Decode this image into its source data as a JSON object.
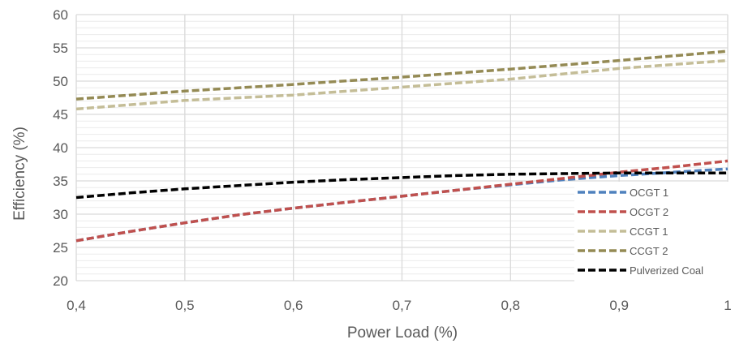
{
  "chart_data": {
    "type": "line",
    "title": "",
    "xlabel": "Power Load (%)",
    "ylabel": "Efficiency (%)",
    "xlim": [
      0.4,
      1.0
    ],
    "ylim": [
      20,
      60
    ],
    "x_ticks": [
      "0,4",
      "0,5",
      "0,6",
      "0,7",
      "0,8",
      "0,9",
      "1"
    ],
    "y_ticks": [
      "20",
      "25",
      "30",
      "35",
      "40",
      "45",
      "50",
      "55",
      "60"
    ],
    "grid": {
      "major": true,
      "minor_horizontal": true
    },
    "legend_position": "bottom-right",
    "series": [
      {
        "name": "OCGT 1",
        "color": "#4f81bd",
        "dash": "dashed",
        "x": [
          0.4,
          0.45,
          0.5,
          0.55,
          0.6,
          0.65,
          0.7,
          0.75,
          0.8,
          0.85,
          0.9,
          0.95,
          1.0
        ],
        "y": [
          26.0,
          27.4,
          28.7,
          29.9,
          30.9,
          31.8,
          32.7,
          33.6,
          34.4,
          35.2,
          35.8,
          36.3,
          36.8
        ]
      },
      {
        "name": "OCGT 2",
        "color": "#c0504d",
        "dash": "dashed",
        "x": [
          0.4,
          0.45,
          0.5,
          0.55,
          0.6,
          0.65,
          0.7,
          0.75,
          0.8,
          0.85,
          0.9,
          0.95,
          1.0
        ],
        "y": [
          26.0,
          27.4,
          28.7,
          29.9,
          30.9,
          31.8,
          32.7,
          33.6,
          34.5,
          35.4,
          36.3,
          37.1,
          38.0
        ]
      },
      {
        "name": "CCGT 1",
        "color": "#c4bd97",
        "dash": "dashed",
        "x": [
          0.4,
          0.5,
          0.6,
          0.7,
          0.8,
          0.9,
          1.0
        ],
        "y": [
          45.8,
          47.1,
          47.9,
          49.1,
          50.3,
          51.9,
          53.1
        ]
      },
      {
        "name": "CCGT 2",
        "color": "#948a54",
        "dash": "dashed",
        "x": [
          0.4,
          0.5,
          0.6,
          0.7,
          0.8,
          0.9,
          1.0
        ],
        "y": [
          47.3,
          48.5,
          49.5,
          50.6,
          51.8,
          53.1,
          54.5
        ]
      },
      {
        "name": "Pulverized Coal",
        "color": "#000000",
        "dash": "dashed",
        "x": [
          0.4,
          0.45,
          0.5,
          0.55,
          0.6,
          0.65,
          0.7,
          0.75,
          0.8,
          0.85,
          0.9,
          0.95,
          1.0
        ],
        "y": [
          32.5,
          33.2,
          33.8,
          34.3,
          34.8,
          35.2,
          35.5,
          35.8,
          36.0,
          36.1,
          36.2,
          36.2,
          36.2
        ]
      }
    ]
  }
}
